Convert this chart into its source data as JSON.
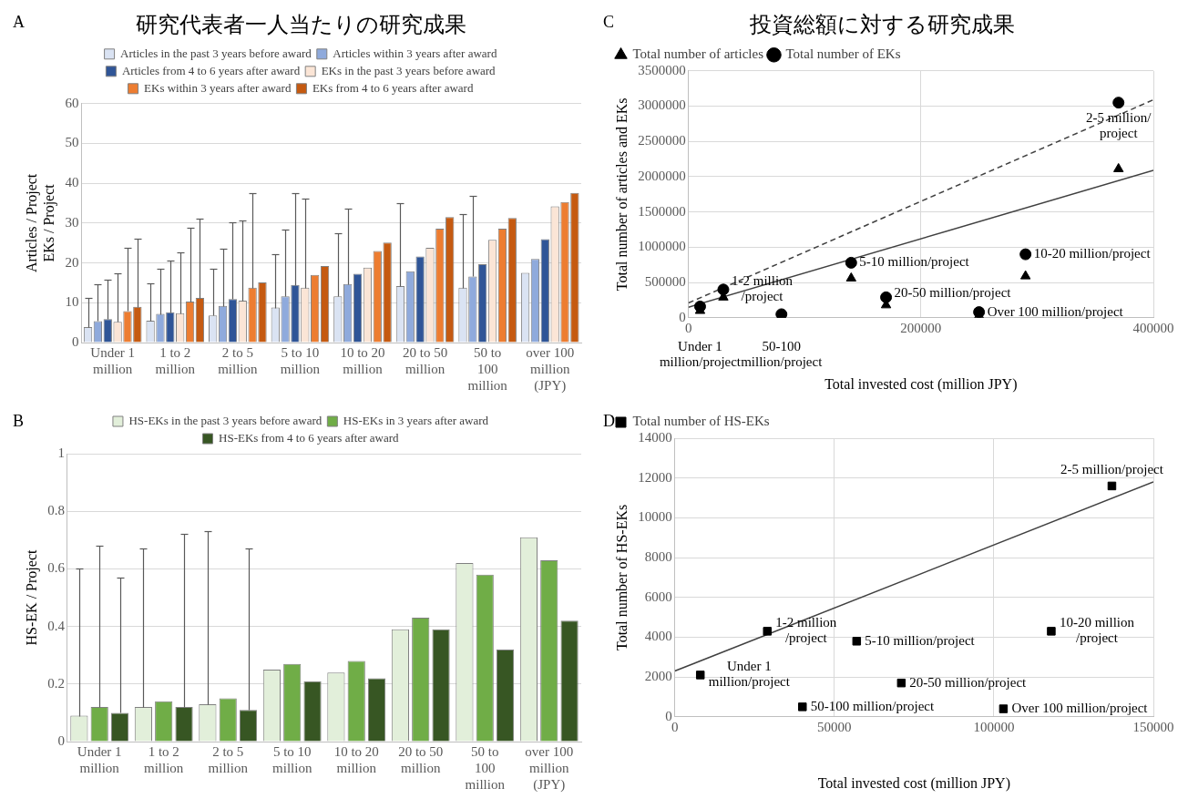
{
  "chart_data": [
    {
      "type": "bar",
      "title": "研究代表者一人当たりの研究成果",
      "ylabel": "Articles / Project\nEKs / Project",
      "annotations": [
        "A"
      ],
      "categories": [
        "Under 1\nmillion",
        "1 to 2\nmillion",
        "2 to 5\nmillion",
        "5 to 10\nmillion",
        "10 to 20\nmillion",
        "20 to 50\nmillion",
        "50 to\n100\nmillion",
        "over 100\nmillion\n(JPY)"
      ],
      "ylim": [
        0,
        60
      ],
      "yticks": [
        0,
        10,
        20,
        30,
        40,
        50,
        60
      ],
      "grid": "y",
      "legend": "top",
      "series": [
        {
          "name": "Articles in the past 3 years before award",
          "color": "#dae3f3",
          "values": [
            3.9,
            5.5,
            6.8,
            8.8,
            11.6,
            14.2,
            13.8,
            17.5
          ],
          "errors": [
            [
              3.9,
              11.1
            ],
            [
              5.5,
              14.9
            ],
            [
              6.8,
              18.6
            ],
            [
              8.8,
              22.3
            ],
            [
              11.6,
              27.5
            ],
            [
              14.2,
              35.0
            ],
            [
              13.8,
              32.2
            ],
            null
          ]
        },
        {
          "name": "Articles within 3 years after award",
          "color": "#8faadc",
          "values": [
            5.4,
            7.2,
            9.2,
            11.6,
            14.7,
            17.9,
            16.6,
            21.0
          ],
          "errors": [
            [
              5.4,
              14.6
            ],
            [
              7.2,
              18.6
            ],
            [
              9.2,
              23.6
            ],
            [
              11.6,
              28.4
            ],
            [
              14.7,
              33.7
            ],
            null,
            [
              16.6,
              36.8
            ],
            null
          ]
        },
        {
          "name": "Articles from 4 to 6 years after award",
          "color": "#2f5597",
          "values": [
            5.9,
            7.6,
            10.9,
            14.5,
            17.3,
            21.6,
            19.7,
            26.0
          ],
          "errors": [
            [
              5.9,
              15.9
            ],
            [
              7.6,
              20.7
            ],
            [
              10.9,
              30.2
            ],
            [
              14.5,
              37.5
            ],
            null,
            null,
            null,
            null
          ]
        },
        {
          "name": "EKs in the past 3 years before award",
          "color": "#fbe5d6",
          "values": [
            5.2,
            7.4,
            10.5,
            13.8,
            18.8,
            23.8,
            25.8,
            34.2
          ],
          "errors": [
            [
              5.2,
              17.5
            ],
            [
              7.4,
              22.7
            ],
            [
              10.5,
              30.6
            ],
            [
              13.8,
              36.2
            ],
            null,
            null,
            null,
            null
          ]
        },
        {
          "name": "EKs within 3 years after award",
          "color": "#ed7d31",
          "values": [
            7.9,
            10.3,
            13.8,
            17.0,
            23.0,
            28.6,
            28.6,
            35.3
          ],
          "errors": [
            [
              7.9,
              23.8
            ],
            [
              10.3,
              28.9
            ],
            [
              13.8,
              37.5
            ],
            null,
            null,
            null,
            null,
            null
          ]
        },
        {
          "name": "EKs from 4 to 6 years after award",
          "color": "#c55a11",
          "values": [
            9.0,
            11.2,
            15.1,
            19.2,
            25.1,
            31.5,
            31.3,
            37.6
          ],
          "errors": [
            [
              9.0,
              26.2
            ],
            [
              11.2,
              31.2
            ],
            null,
            null,
            null,
            null,
            null,
            null
          ]
        }
      ]
    },
    {
      "type": "scatter",
      "title": "投資総額に対する研究成果",
      "xlabel": "Total invested cost (million JPY)",
      "ylabel": "Total number of articles and EKs",
      "xlim": [
        0,
        400000
      ],
      "xticks": [
        0,
        200000,
        400000
      ],
      "ylim": [
        0,
        3500000
      ],
      "yticks": [
        0,
        500000,
        1000000,
        1500000,
        2000000,
        2500000,
        3000000,
        3500000
      ],
      "grid": true,
      "legend": "top left",
      "series": [
        {
          "name": "Total number of EKs",
          "color": "#000000",
          "marker": "circle",
          "x": [
            10000,
            30000,
            80000,
            140000,
            170000,
            250000,
            290000,
            370000
          ],
          "values": [
            160000,
            400000,
            50000,
            780000,
            290000,
            80000,
            900000,
            3050000
          ]
        },
        {
          "name": "Total number of articles",
          "color": "#000000",
          "marker": "triangle",
          "x": [
            10000,
            30000,
            80000,
            140000,
            170000,
            250000,
            290000,
            370000
          ],
          "values": [
            100000,
            290000,
            20000,
            560000,
            180000,
            30000,
            590000,
            2110000
          ]
        },
        {
          "type": "line",
          "color": "#404040",
          "line_style": "dashed",
          "x": [
            0,
            400000
          ],
          "values": [
            210000,
            3090000
          ]
        },
        {
          "type": "line",
          "color": "#404040",
          "line_style": "solid",
          "x": [
            0,
            400000
          ],
          "values": [
            150000,
            2090000
          ]
        }
      ],
      "annotations": [
        "C",
        {
          "text": "Under 1\nmillion/project",
          "x": 10000,
          "y": 160000
        },
        {
          "text": "1-2 million\n/project",
          "x": 30000,
          "y": 400000
        },
        {
          "text": "50-100\nmillion/project",
          "x": 80000,
          "y": 50000
        },
        {
          "text": "5-10 million/project",
          "x": 140000,
          "y": 780000
        },
        {
          "text": "20-50 million/project",
          "x": 170000,
          "y": 290000
        },
        {
          "text": "Over 100 million/project",
          "x": 250000,
          "y": 80000
        },
        {
          "text": "10-20 million/project",
          "x": 290000,
          "y": 900000
        },
        {
          "text": "2-5 million/\nproject",
          "x": 370000,
          "y": 3050000
        }
      ]
    },
    {
      "type": "bar",
      "ylabel": "HS-EK / Project",
      "annotations": [
        "B"
      ],
      "categories": [
        "Under 1\nmillion",
        "1 to 2\nmillion",
        "2 to 5\nmillion",
        "5 to 10\nmillion",
        "10 to 20\nmillion",
        "20 to 50\nmillion",
        "50 to\n100\nmillion",
        "over 100\nmillion\n(JPY)"
      ],
      "ylim": [
        0,
        1
      ],
      "yticks": [
        0,
        0.2,
        0.4,
        0.6,
        0.8,
        1
      ],
      "grid": "y",
      "legend": "top",
      "series": [
        {
          "name": "HS-EKs in the past 3 years before award",
          "color": "#e2efda",
          "values": [
            0.09,
            0.12,
            0.13,
            0.25,
            0.24,
            0.39,
            0.62,
            0.71
          ],
          "errors": [
            [
              0.09,
              0.6
            ],
            [
              0.12,
              0.67
            ],
            [
              0.13,
              0.73
            ],
            null,
            null,
            null,
            null,
            null
          ]
        },
        {
          "name": "HS-EKs in 3 years after award",
          "color": "#70ad47",
          "values": [
            0.12,
            0.14,
            0.15,
            0.27,
            0.28,
            0.43,
            0.58,
            0.63
          ],
          "errors": [
            [
              0.12,
              0.68
            ],
            null,
            null,
            null,
            null,
            null,
            null,
            null
          ]
        },
        {
          "name": "HS-EKs from 4 to 6 years after award",
          "color": "#375623",
          "values": [
            0.1,
            0.12,
            0.11,
            0.21,
            0.22,
            0.39,
            0.32,
            0.42
          ],
          "errors": [
            [
              0.1,
              0.57
            ],
            [
              0.12,
              0.72
            ],
            [
              0.11,
              0.67
            ],
            null,
            null,
            null,
            null,
            null
          ]
        }
      ]
    },
    {
      "type": "scatter",
      "xlabel": "Total invested cost (million JPY)",
      "ylabel": "Total number of HS-EKs",
      "xlim": [
        0,
        150000
      ],
      "xticks": [
        0,
        50000,
        100000,
        150000
      ],
      "ylim": [
        0,
        14000
      ],
      "yticks": [
        0,
        2000,
        4000,
        6000,
        8000,
        10000,
        12000,
        14000
      ],
      "grid": true,
      "legend": "top left",
      "series": [
        {
          "name": "Total number of HS-EKs",
          "color": "#000000",
          "marker": "square",
          "x": [
            8000,
            29000,
            40000,
            57000,
            71000,
            103000,
            118000,
            137000
          ],
          "values": [
            2100,
            4300,
            500,
            3800,
            1700,
            400,
            4300,
            11600
          ]
        },
        {
          "type": "line",
          "color": "#404040",
          "line_style": "solid",
          "x": [
            0,
            150000
          ],
          "values": [
            2300,
            11800
          ]
        }
      ],
      "annotations": [
        "D",
        {
          "text": "Under 1\nmillion/project",
          "x": 8000,
          "y": 2100
        },
        {
          "text": "1-2 million\n/project",
          "x": 29000,
          "y": 4300
        },
        {
          "text": "50-100 million/project",
          "x": 40000,
          "y": 500
        },
        {
          "text": "5-10 million/project",
          "x": 57000,
          "y": 3800
        },
        {
          "text": "20-50 million/project",
          "x": 71000,
          "y": 1700
        },
        {
          "text": "Over 100 million/project",
          "x": 103000,
          "y": 400
        },
        {
          "text": "10-20 million\n/project",
          "x": 118000,
          "y": 4300
        },
        {
          "text": "2-5 million/project",
          "x": 137000,
          "y": 11600
        }
      ]
    }
  ]
}
